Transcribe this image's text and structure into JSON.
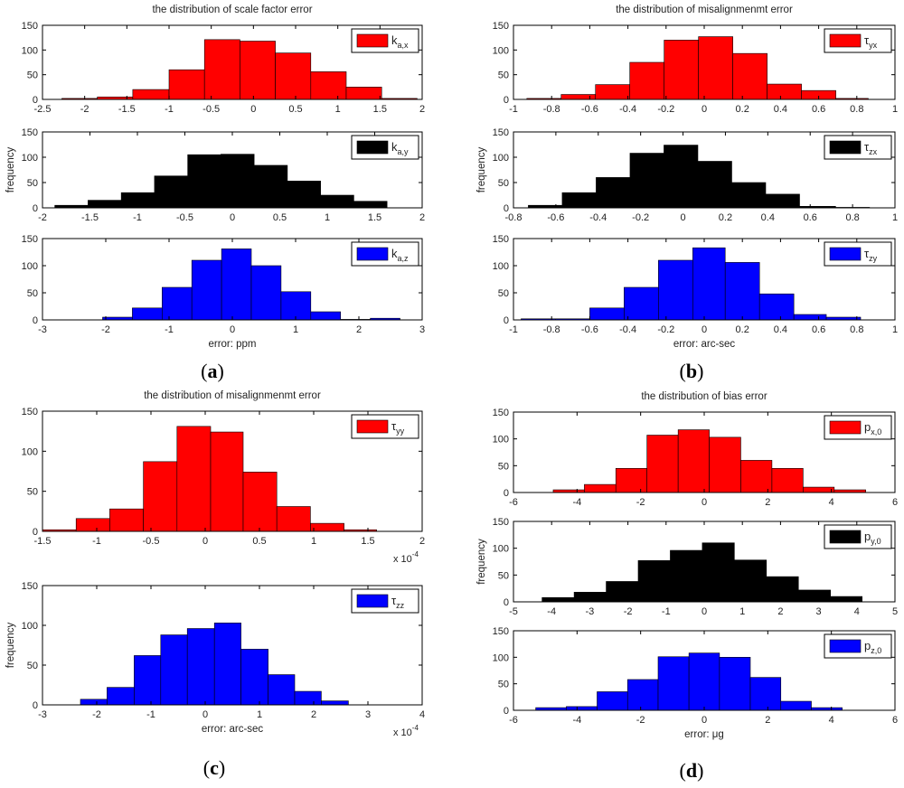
{
  "panels": [
    {
      "label_open": "(",
      "label_letter": "a",
      "label_close": ")"
    },
    {
      "label_open": "(",
      "label_letter": "b",
      "label_close": ")"
    },
    {
      "label_open": "(",
      "label_letter": "c",
      "label_close": ")"
    },
    {
      "label_open": "(",
      "label_letter": "d",
      "label_close": ")"
    }
  ],
  "colors": {
    "red": "#ff0000",
    "black": "#000000",
    "blue": "#0000ff"
  },
  "chart_data": [
    {
      "type": "bar",
      "panel": "a",
      "title": "the distribution of scale factor error",
      "xlabel": "",
      "ylabel": "",
      "xlim": [
        -2.5,
        2
      ],
      "ylim": [
        0,
        150
      ],
      "xticks": [
        "-2.5",
        "-2",
        "-1.5",
        "-1",
        "-0.5",
        "0",
        "0.5",
        "1",
        "1.5",
        "2"
      ],
      "yticks": [
        "0",
        "50",
        "100",
        "150"
      ],
      "x_multiplier": "",
      "legend": {
        "main": "k",
        "sub": "a,x",
        "color": "red"
      },
      "bin_edges": [
        -2.27,
        -1.85,
        -1.43,
        -1.0,
        -0.58,
        -0.16,
        0.26,
        0.68,
        1.1,
        1.52,
        1.94
      ],
      "values": [
        2,
        5,
        20,
        60,
        121,
        118,
        94,
        56,
        25,
        2
      ]
    },
    {
      "type": "bar",
      "panel": "a",
      "title": "",
      "xlabel": "",
      "ylabel": "frequency",
      "xlim": [
        -2,
        2
      ],
      "ylim": [
        0,
        150
      ],
      "xticks": [
        "-2",
        "-1.5",
        "-1",
        "-0.5",
        "0",
        "0.5",
        "1",
        "1.5",
        "2"
      ],
      "yticks": [
        "0",
        "50",
        "100",
        "150"
      ],
      "x_multiplier": "",
      "legend": {
        "main": "k",
        "sub": "a,y",
        "color": "black"
      },
      "bin_edges": [
        -1.87,
        -1.52,
        -1.17,
        -0.82,
        -0.47,
        -0.12,
        0.23,
        0.58,
        0.93,
        1.28,
        1.63
      ],
      "values": [
        5,
        15,
        30,
        63,
        105,
        106,
        84,
        53,
        25,
        13
      ]
    },
    {
      "type": "bar",
      "panel": "a",
      "title": "",
      "xlabel": "error: ppm",
      "ylabel": "",
      "xlim": [
        -3,
        3
      ],
      "ylim": [
        0,
        150
      ],
      "xticks": [
        "-3",
        "-2",
        "-1",
        "0",
        "1",
        "2",
        "3"
      ],
      "yticks": [
        "0",
        "50",
        "100",
        "150"
      ],
      "x_multiplier": "",
      "legend": {
        "main": "k",
        "sub": "a,z",
        "color": "blue"
      },
      "bin_edges": [
        -2.05,
        -1.58,
        -1.11,
        -0.64,
        -0.17,
        0.3,
        0.77,
        1.24,
        1.71,
        2.18,
        2.65
      ],
      "values": [
        5,
        22,
        60,
        110,
        131,
        100,
        52,
        15,
        1,
        3
      ]
    },
    {
      "type": "bar",
      "panel": "b",
      "title": "the distribution of misalignmenmt error",
      "xlabel": "",
      "ylabel": "",
      "xlim": [
        -1,
        1
      ],
      "ylim": [
        0,
        150
      ],
      "xticks": [
        "-1",
        "-0.8",
        "-0.6",
        "-0.4",
        "-0.2",
        "0",
        "0.2",
        "0.4",
        "0.6",
        "0.8",
        "1"
      ],
      "yticks": [
        "0",
        "50",
        "100",
        "150"
      ],
      "x_multiplier": "",
      "legend": {
        "main": "τ",
        "sub": "yx",
        "color": "red"
      },
      "bin_edges": [
        -0.93,
        -0.75,
        -0.57,
        -0.39,
        -0.21,
        -0.03,
        0.15,
        0.33,
        0.51,
        0.69,
        0.86
      ],
      "values": [
        2,
        10,
        30,
        75,
        120,
        127,
        93,
        31,
        18,
        2
      ]
    },
    {
      "type": "bar",
      "panel": "b",
      "title": "",
      "xlabel": "",
      "ylabel": "frequency",
      "xlim": [
        -0.8,
        1
      ],
      "ylim": [
        0,
        150
      ],
      "xticks": [
        "-0.8",
        "-0.6",
        "-0.4",
        "-0.2",
        "0",
        "0.2",
        "0.4",
        "0.6",
        "0.8",
        "1"
      ],
      "yticks": [
        "0",
        "50",
        "100",
        "150"
      ],
      "x_multiplier": "",
      "legend": {
        "main": "τ",
        "sub": "zx",
        "color": "black"
      },
      "bin_edges": [
        -0.73,
        -0.57,
        -0.41,
        -0.25,
        -0.09,
        0.07,
        0.23,
        0.39,
        0.55,
        0.72,
        0.88
      ],
      "values": [
        5,
        30,
        60,
        108,
        124,
        92,
        50,
        27,
        3,
        1
      ]
    },
    {
      "type": "bar",
      "panel": "b",
      "title": "",
      "xlabel": "error: arc-sec",
      "ylabel": "",
      "xlim": [
        -1,
        1
      ],
      "ylim": [
        0,
        150
      ],
      "xticks": [
        "-1",
        "-0.8",
        "-0.6",
        "-0.4",
        "-0.2",
        "0",
        "0.2",
        "0.4",
        "0.6",
        "0.8",
        "1"
      ],
      "yticks": [
        "0",
        "50",
        "100",
        "150"
      ],
      "x_multiplier": "",
      "legend": {
        "main": "τ",
        "sub": "zy",
        "color": "blue"
      },
      "bin_edges": [
        -0.96,
        -0.78,
        -0.6,
        -0.42,
        -0.24,
        -0.06,
        0.11,
        0.29,
        0.47,
        0.64,
        0.82
      ],
      "values": [
        2,
        2,
        22,
        60,
        110,
        133,
        106,
        48,
        10,
        5
      ]
    },
    {
      "type": "bar",
      "panel": "c",
      "title": "the distribution of misalignmenmt error",
      "xlabel": "",
      "ylabel": "",
      "xlim": [
        -1.5,
        2
      ],
      "ylim": [
        0,
        150
      ],
      "xticks": [
        "-1.5",
        "-1",
        "-0.5",
        "0",
        "0.5",
        "1",
        "1.5",
        "2"
      ],
      "yticks": [
        "0",
        "50",
        "100",
        "150"
      ],
      "x_multiplier": "x 10",
      "x_exponent": "-4",
      "legend": {
        "main": "τ",
        "sub": "yy",
        "color": "red"
      },
      "bin_edges": [
        -1.5,
        -1.19,
        -0.88,
        -0.57,
        -0.26,
        0.05,
        0.35,
        0.66,
        0.97,
        1.28,
        1.58
      ],
      "values": [
        2,
        16,
        28,
        87,
        131,
        124,
        74,
        31,
        10,
        2
      ]
    },
    {
      "type": "bar",
      "panel": "c",
      "title": "",
      "xlabel": "error: arc-sec",
      "ylabel": "frequency",
      "xlim": [
        -3,
        4
      ],
      "ylim": [
        0,
        150
      ],
      "xticks": [
        "-3",
        "-2",
        "-1",
        "0",
        "1",
        "2",
        "3",
        "4"
      ],
      "yticks": [
        "0",
        "50",
        "100",
        "150"
      ],
      "x_multiplier": "x 10",
      "x_exponent": "-4",
      "legend": {
        "main": "τ",
        "sub": "zz",
        "color": "blue"
      },
      "bin_edges": [
        -2.3,
        -1.81,
        -1.31,
        -0.82,
        -0.33,
        0.17,
        0.66,
        1.16,
        1.65,
        2.14,
        2.64
      ],
      "values": [
        7,
        22,
        62,
        88,
        96,
        103,
        70,
        38,
        17,
        5
      ]
    },
    {
      "type": "bar",
      "panel": "d",
      "title": "the distribution of bias error",
      "xlabel": "",
      "ylabel": "",
      "xlim": [
        -6,
        6
      ],
      "ylim": [
        0,
        150
      ],
      "xticks": [
        "-6",
        "-4",
        "-2",
        "0",
        "2",
        "4",
        "6"
      ],
      "yticks": [
        "0",
        "50",
        "100",
        "150"
      ],
      "x_multiplier": "",
      "legend": {
        "main": "p",
        "sub": "x,0",
        "color": "red"
      },
      "bin_edges": [
        -4.75,
        -3.77,
        -2.78,
        -1.8,
        -0.82,
        0.16,
        1.15,
        2.13,
        3.11,
        4.09,
        5.08
      ],
      "values": [
        5,
        15,
        45,
        107,
        117,
        103,
        60,
        45,
        10,
        5
      ]
    },
    {
      "type": "bar",
      "panel": "d",
      "title": "",
      "xlabel": "",
      "ylabel": "frequency",
      "xlim": [
        -5,
        5
      ],
      "ylim": [
        0,
        150
      ],
      "xticks": [
        "-5",
        "-4",
        "-3",
        "-2",
        "-1",
        "0",
        "1",
        "2",
        "3",
        "4",
        "5"
      ],
      "yticks": [
        "0",
        "50",
        "100",
        "150"
      ],
      "x_multiplier": "",
      "legend": {
        "main": "p",
        "sub": "y,0",
        "color": "black"
      },
      "bin_edges": [
        -4.25,
        -3.41,
        -2.57,
        -1.73,
        -0.89,
        -0.05,
        0.79,
        1.63,
        2.47,
        3.31,
        4.14
      ],
      "values": [
        8,
        18,
        38,
        77,
        96,
        110,
        78,
        47,
        22,
        10
      ]
    },
    {
      "type": "bar",
      "panel": "d",
      "title": "",
      "xlabel": "error: μg",
      "ylabel": "",
      "xlim": [
        -6,
        6
      ],
      "ylim": [
        0,
        150
      ],
      "xticks": [
        "-6",
        "-4",
        "-2",
        "0",
        "2",
        "4",
        "6"
      ],
      "yticks": [
        "0",
        "50",
        "100",
        "150"
      ],
      "x_multiplier": "",
      "legend": {
        "main": "p",
        "sub": "z,0",
        "color": "blue"
      },
      "bin_edges": [
        -5.3,
        -4.34,
        -3.37,
        -2.41,
        -1.45,
        -0.48,
        0.48,
        1.45,
        2.41,
        3.37,
        4.34
      ],
      "values": [
        5,
        7,
        35,
        58,
        101,
        108,
        100,
        62,
        17,
        5
      ]
    }
  ]
}
